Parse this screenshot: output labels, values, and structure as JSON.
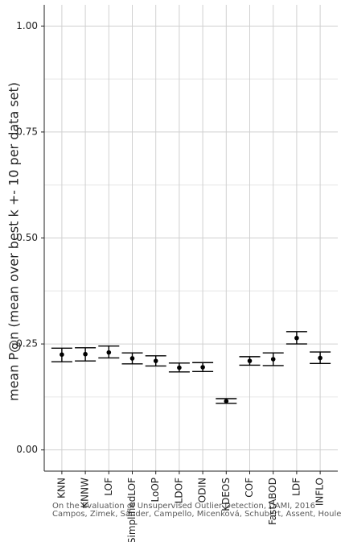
{
  "chart_data": {
    "type": "errorbar",
    "ylabel": "mean P@n (mean over best k +- 10 per data set)",
    "xlabel": "",
    "ylim": [
      -0.05,
      1.05
    ],
    "yticks": [
      0.0,
      0.25,
      0.5,
      0.75,
      1.0
    ],
    "ytick_labels": [
      "0.00",
      "0.25",
      "0.50",
      "0.75",
      "1.00"
    ],
    "grid": true,
    "categories": [
      "KNN",
      "KNNW",
      "LOF",
      "SimplifiedLOF",
      "LoOP",
      "LDOF",
      "ODIN",
      "KDEOS",
      "COF",
      "FastABOD",
      "LDF",
      "INFLO"
    ],
    "series": [
      {
        "mean": [
          0.225,
          0.226,
          0.23,
          0.216,
          0.21,
          0.194,
          0.195,
          0.115,
          0.21,
          0.214,
          0.264,
          0.217
        ],
        "lower": [
          0.208,
          0.21,
          0.217,
          0.203,
          0.198,
          0.184,
          0.185,
          0.11,
          0.2,
          0.199,
          0.25,
          0.204
        ],
        "upper": [
          0.24,
          0.241,
          0.245,
          0.229,
          0.222,
          0.205,
          0.206,
          0.121,
          0.22,
          0.229,
          0.279,
          0.231
        ]
      }
    ],
    "watermark": [
      "On the Evaluation of Unsupervised Outlier Detection, DAMI, 2016",
      "Campos, Zimek, Sander, Campello, Micenková, Schubert, Assent, Houle"
    ]
  }
}
